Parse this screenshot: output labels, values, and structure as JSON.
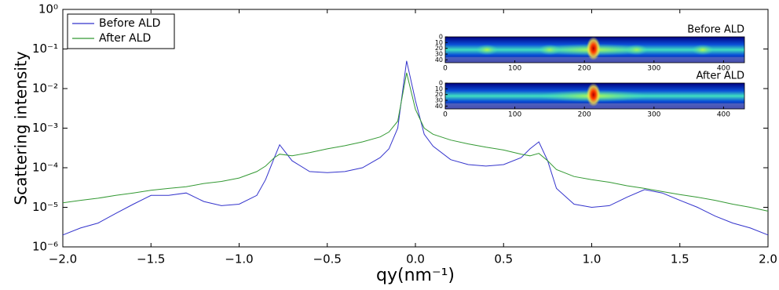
{
  "chart_data": [
    {
      "type": "line",
      "yscale": "log",
      "xlabel": "qy(nm⁻¹)",
      "ylabel": "Scattering intensity",
      "xlim": [
        -2,
        2
      ],
      "ylim": [
        1e-06,
        1
      ],
      "xticks": [
        {
          "value": -2,
          "label": "−2.0"
        },
        {
          "value": -1.5,
          "label": "−1.5"
        },
        {
          "value": -1,
          "label": "−1.0"
        },
        {
          "value": -0.5,
          "label": "−0.5"
        },
        {
          "value": 0,
          "label": "0.0"
        },
        {
          "value": 0.5,
          "label": "0.5"
        },
        {
          "value": 1,
          "label": "1.0"
        },
        {
          "value": 1.5,
          "label": "1.5"
        },
        {
          "value": 2,
          "label": "2.0"
        }
      ],
      "yticks": [
        {
          "value": 1e-06,
          "label": "10⁻⁶"
        },
        {
          "value": 1e-05,
          "label": "10⁻⁵"
        },
        {
          "value": 0.0001,
          "label": "10⁻⁴"
        },
        {
          "value": 0.001,
          "label": "10⁻³"
        },
        {
          "value": 0.01,
          "label": "10⁻²"
        },
        {
          "value": 0.1,
          "label": "10⁻¹"
        },
        {
          "value": 1,
          "label": "10⁰"
        }
      ],
      "legend": "upper left",
      "x": [
        -2.0,
        -1.9,
        -1.8,
        -1.7,
        -1.6,
        -1.5,
        -1.4,
        -1.3,
        -1.2,
        -1.1,
        -1.0,
        -0.9,
        -0.85,
        -0.8,
        -0.77,
        -0.7,
        -0.6,
        -0.5,
        -0.4,
        -0.3,
        -0.2,
        -0.15,
        -0.1,
        -0.05,
        0.0,
        0.05,
        0.1,
        0.2,
        0.3,
        0.4,
        0.5,
        0.6,
        0.65,
        0.7,
        0.75,
        0.8,
        0.9,
        1.0,
        1.1,
        1.2,
        1.3,
        1.4,
        1.5,
        1.6,
        1.7,
        1.8,
        1.9,
        2.0
      ],
      "series": [
        {
          "name": "Before ALD",
          "color": "#3333cc",
          "values": [
            2e-06,
            3e-06,
            4e-06,
            7e-06,
            1.2e-05,
            2e-05,
            2e-05,
            2.3e-05,
            1.4e-05,
            1.1e-05,
            1.2e-05,
            2e-05,
            5e-05,
            0.00018,
            0.00038,
            0.00015,
            8e-05,
            7.5e-05,
            8e-05,
            0.0001,
            0.00018,
            0.0003,
            0.001,
            0.05,
            0.005,
            0.0007,
            0.00035,
            0.00016,
            0.00012,
            0.00011,
            0.00012,
            0.00018,
            0.0003,
            0.00045,
            0.00015,
            3e-05,
            1.2e-05,
            1e-05,
            1.1e-05,
            1.8e-05,
            2.8e-05,
            2.3e-05,
            1.5e-05,
            1e-05,
            6e-06,
            4e-06,
            3e-06,
            2e-06
          ]
        },
        {
          "name": "After ALD",
          "color": "#339933",
          "values": [
            1.3e-05,
            1.5e-05,
            1.7e-05,
            2e-05,
            2.3e-05,
            2.7e-05,
            3e-05,
            3.3e-05,
            4e-05,
            4.5e-05,
            5.5e-05,
            8e-05,
            0.00011,
            0.00018,
            0.00022,
            0.0002,
            0.00024,
            0.0003,
            0.00036,
            0.00045,
            0.0006,
            0.0008,
            0.0015,
            0.025,
            0.003,
            0.001,
            0.0007,
            0.0005,
            0.0004,
            0.00033,
            0.00028,
            0.00022,
            0.0002,
            0.00023,
            0.00015,
            9e-05,
            6e-05,
            5e-05,
            4.3e-05,
            3.5e-05,
            3e-05,
            2.5e-05,
            2.1e-05,
            1.8e-05,
            1.5e-05,
            1.2e-05,
            1e-05,
            8e-06
          ]
        }
      ]
    },
    {
      "type": "image",
      "title": "Before ALD",
      "xlim": [
        0,
        430
      ],
      "ylim": [
        0,
        45
      ],
      "xticks": [
        0,
        100,
        200,
        300,
        400
      ],
      "yticks": [
        0,
        10,
        20,
        30,
        40
      ]
    },
    {
      "type": "image",
      "title": "After ALD",
      "xlim": [
        0,
        430
      ],
      "ylim": [
        0,
        45
      ],
      "xticks": [
        0,
        100,
        200,
        300,
        400
      ],
      "yticks": [
        0,
        10,
        20,
        30,
        40
      ]
    }
  ]
}
